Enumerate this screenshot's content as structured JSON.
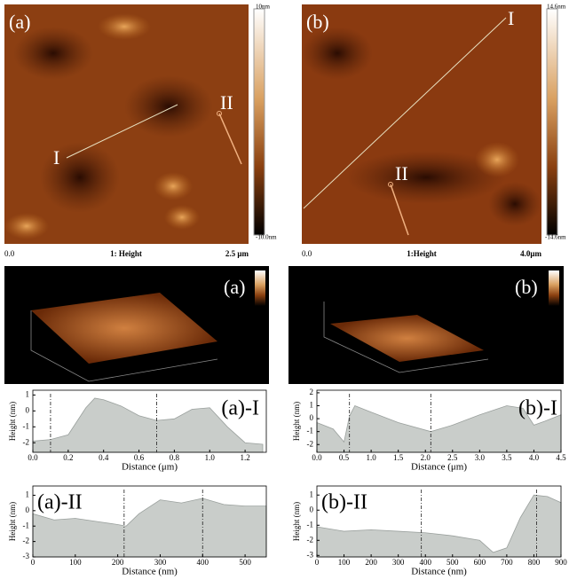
{
  "panels": {
    "afm_a": {
      "label": "(a)",
      "line_I": "I",
      "line_II": "II",
      "scale_top": "10nm",
      "scale_bottom": "-10.0nm",
      "axis_start": "0.0",
      "axis_title": "1: Height",
      "axis_end": "2.5 μm"
    },
    "afm_b": {
      "label": "(b)",
      "line_I": "I",
      "line_II": "II",
      "scale_top": "14.6nm",
      "scale_bottom": "-14.6nm",
      "axis_start": "0.0",
      "axis_title": "1:Height",
      "axis_end": "4.0μm"
    },
    "view3d_a": {
      "label": "(a)"
    },
    "view3d_b": {
      "label": "(b)"
    }
  },
  "chart_data": [
    {
      "type": "area",
      "title": "(a)-I",
      "xlabel": "Distance (μm)",
      "ylabel": "Height (nm)",
      "x": [
        0,
        0.1,
        0.2,
        0.3,
        0.35,
        0.4,
        0.5,
        0.6,
        0.7,
        0.8,
        0.9,
        1.0,
        1.1,
        1.2,
        1.3
      ],
      "values": [
        -1.9,
        -1.8,
        -1.5,
        0.2,
        0.8,
        0.7,
        0.3,
        -0.3,
        -0.6,
        -0.5,
        0.1,
        0.2,
        -1.0,
        -2.0,
        -2.1
      ],
      "markers": [
        0.1,
        0.7
      ],
      "xlim": [
        0,
        1.32
      ],
      "ylim": [
        -2.6,
        1.3
      ],
      "xticks": [
        {
          "value": 0,
          "label": "0.0"
        },
        0.2,
        0.4,
        0.6,
        0.8,
        {
          "value": 1,
          "label": "1.0"
        },
        1.2
      ],
      "yticks": [
        -2,
        -1,
        0,
        1
      ],
      "color": "#c9cdca"
    },
    {
      "type": "area",
      "title": "(b)-I",
      "xlabel": "Distance (μm)",
      "ylabel": "Height (nm)",
      "x": [
        0,
        0.3,
        0.5,
        0.6,
        0.7,
        1.0,
        1.5,
        2.1,
        2.5,
        3.0,
        3.5,
        3.8,
        4.0,
        4.2,
        4.5
      ],
      "values": [
        -0.3,
        -0.8,
        -1.8,
        0.2,
        1.0,
        0.5,
        -0.3,
        -1.0,
        -0.5,
        0.3,
        1.0,
        0.8,
        -0.5,
        -0.2,
        0.3
      ],
      "markers": [
        0.6,
        2.1
      ],
      "xlim": [
        0,
        4.5
      ],
      "ylim": [
        -2.6,
        2.2
      ],
      "xticks": [
        {
          "value": 0,
          "label": "0.0"
        },
        0.5,
        {
          "value": 1,
          "label": "1.0"
        },
        1.5,
        {
          "value": 2,
          "label": "2.0"
        },
        2.5,
        {
          "value": 3,
          "label": "3.0"
        },
        3.5,
        {
          "value": 4,
          "label": "4.0"
        },
        4.5
      ],
      "yticks": [
        -2,
        -1,
        0,
        1,
        2
      ],
      "color": "#c9cdca"
    },
    {
      "type": "area",
      "title": "(a)-II",
      "xlabel": "Distance (nm)",
      "ylabel": "Height (nm)",
      "x": [
        0,
        50,
        100,
        150,
        200,
        220,
        250,
        300,
        350,
        400,
        450,
        500,
        550
      ],
      "values": [
        -0.2,
        -0.6,
        -0.5,
        -0.7,
        -0.9,
        -1.0,
        -0.2,
        0.7,
        0.5,
        0.8,
        0.4,
        0.3,
        0.3
      ],
      "markers": [
        215,
        400
      ],
      "xlim": [
        0,
        550
      ],
      "ylim": [
        -3,
        1.6
      ],
      "xticks": [
        0,
        100,
        200,
        300,
        400,
        500
      ],
      "yticks": [
        -3,
        -2,
        -1,
        0,
        1
      ],
      "color": "#c9cdca"
    },
    {
      "type": "area",
      "title": "(b)-II",
      "xlabel": "Distance (nm)",
      "ylabel": "Height (nm)",
      "x": [
        0,
        100,
        200,
        300,
        400,
        500,
        600,
        650,
        700,
        750,
        800,
        850,
        900
      ],
      "values": [
        -1.1,
        -1.4,
        -1.3,
        -1.4,
        -1.5,
        -1.7,
        -2.0,
        -2.8,
        -2.5,
        -0.5,
        1.0,
        0.9,
        0.5
      ],
      "markers": [
        385,
        810
      ],
      "xlim": [
        0,
        900
      ],
      "ylim": [
        -3.1,
        1.6
      ],
      "xticks": [
        0,
        100,
        200,
        300,
        400,
        500,
        600,
        700,
        800,
        900
      ],
      "yticks": [
        -3,
        -2,
        -1,
        0,
        1
      ],
      "color": "#c9cdca"
    }
  ]
}
